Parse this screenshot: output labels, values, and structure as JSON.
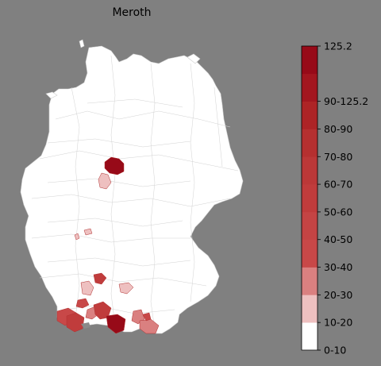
{
  "title": "Meroth",
  "colors": {
    "background": "#808080",
    "land": "#ffffff",
    "border": "#c8c8c8"
  },
  "legend": {
    "max_label": "125.2",
    "bins": [
      {
        "label": "0-10",
        "color": "#ffffff"
      },
      {
        "label": "10-20",
        "color": "#eec0c0"
      },
      {
        "label": "20-30",
        "color": "#da8080"
      },
      {
        "label": "30-40",
        "color": "#c84848"
      },
      {
        "label": "40-50",
        "color": "#c44444"
      },
      {
        "label": "50-60",
        "color": "#c03c3c"
      },
      {
        "label": "60-70",
        "color": "#bb3838"
      },
      {
        "label": "70-80",
        "color": "#b53030"
      },
      {
        "label": "80-90",
        "color": "#ad2426"
      },
      {
        "label": "90-125.2",
        "color": "#a3161f"
      },
      {
        "label": "",
        "color": "#970a18"
      }
    ]
  }
}
